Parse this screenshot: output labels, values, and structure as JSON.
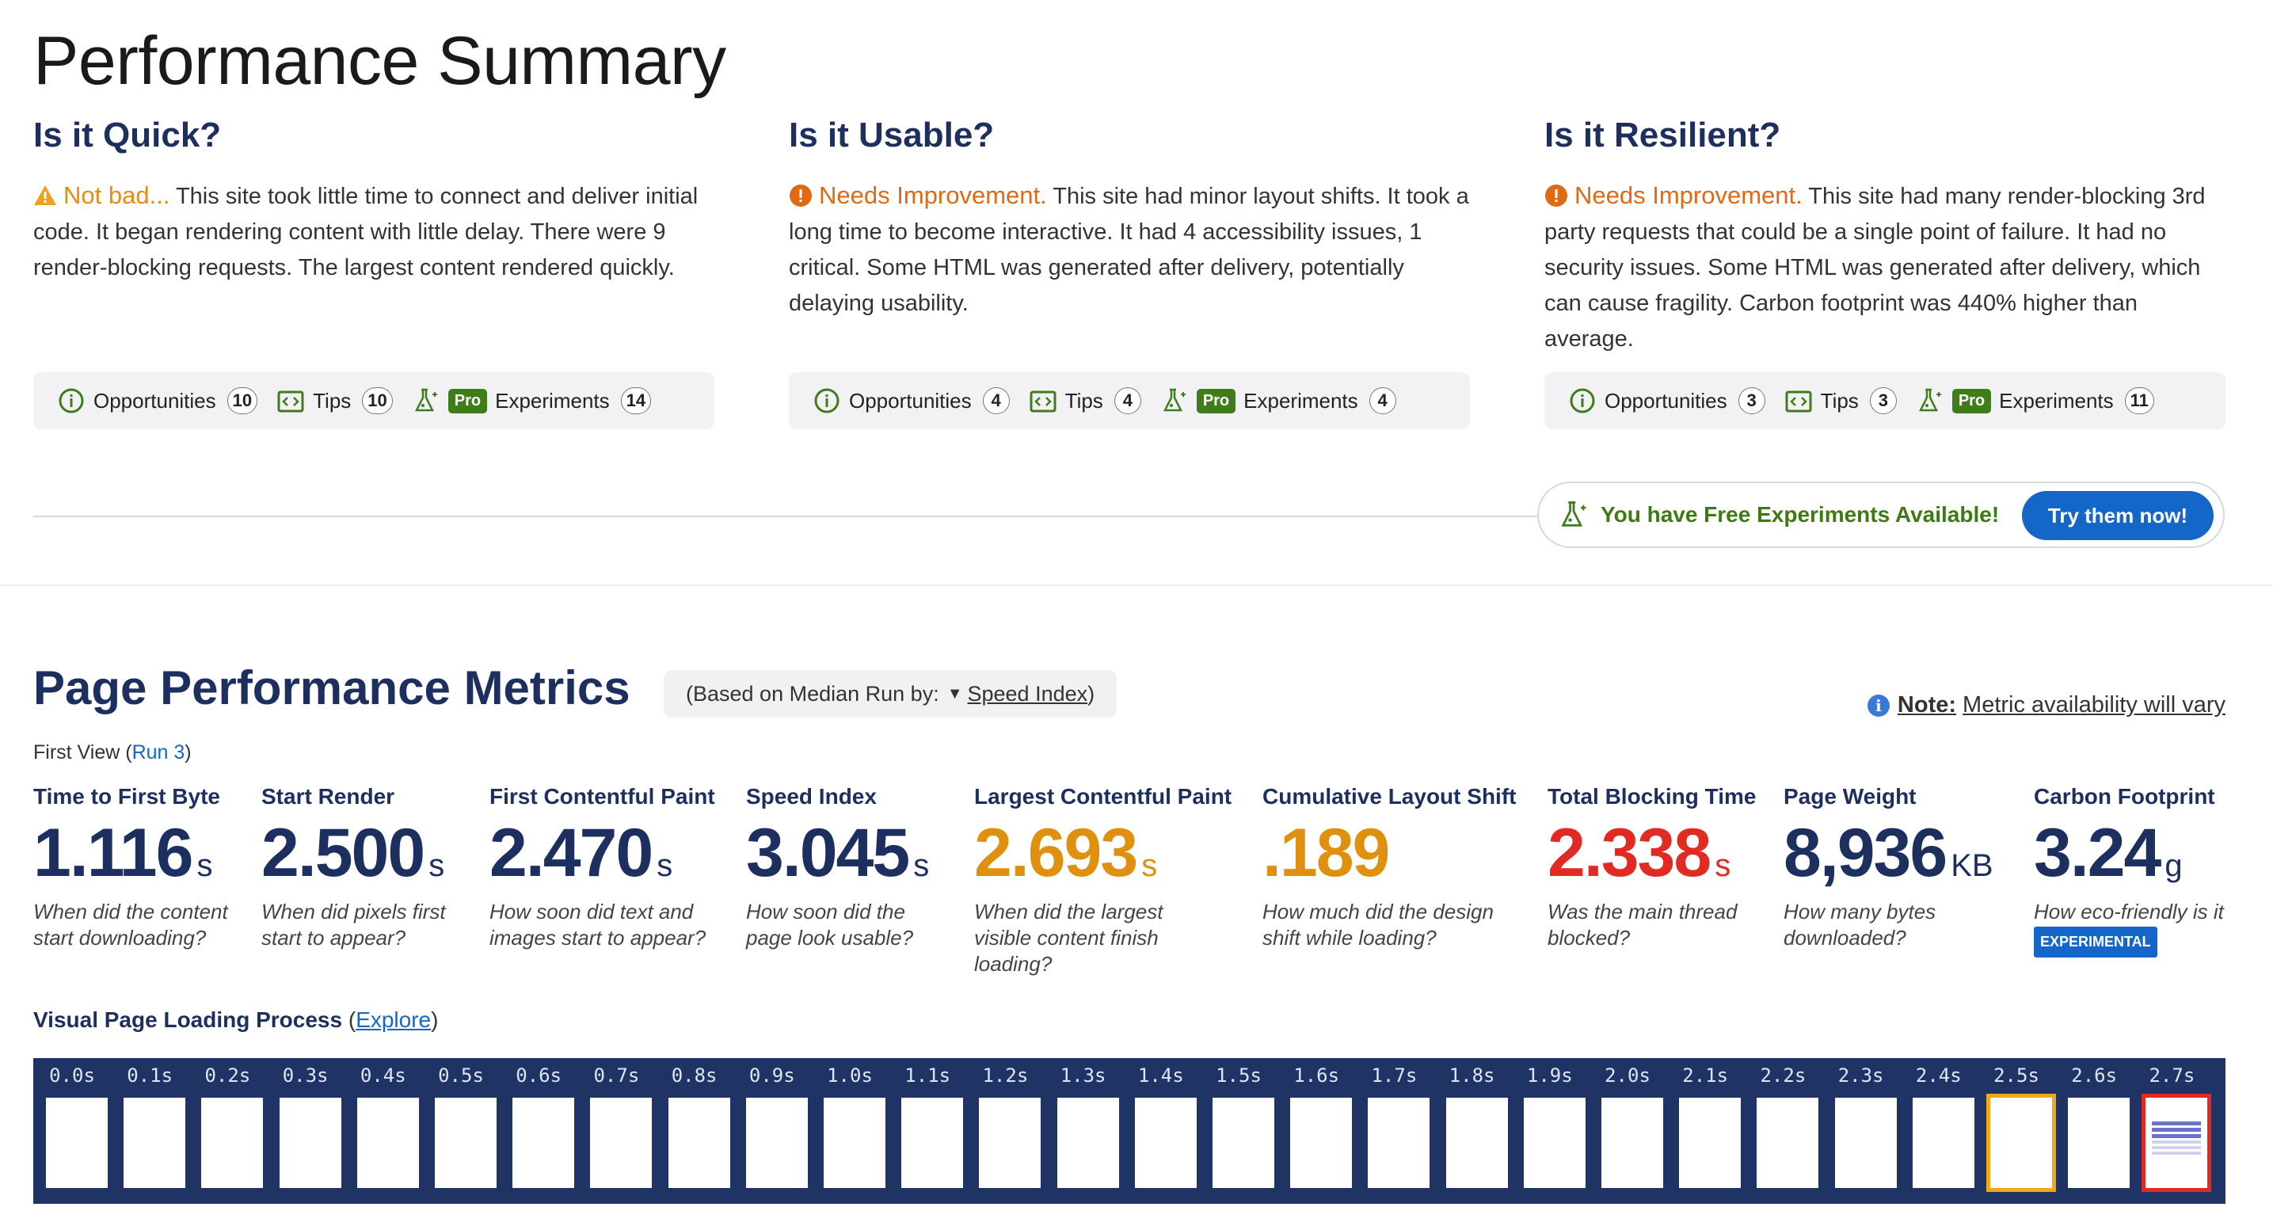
{
  "page_title": "Performance Summary",
  "summary_columns": [
    {
      "heading": "Is it Quick?",
      "verdict": "Not bad...",
      "verdict_icon": "warning-triangle-icon",
      "text": " This site took little time to connect and deliver initial code. It began rendering content with little delay. There were 9 render-blocking requests. The largest content rendered quickly.",
      "opportunities_label": "Opportunities",
      "opportunities_count": "10",
      "tips_label": "Tips",
      "tips_count": "10",
      "pro_label": "Pro",
      "experiments_label": "Experiments",
      "experiments_count": "14"
    },
    {
      "heading": "Is it Usable?",
      "verdict": "Needs Improvement.",
      "verdict_icon": "alert-circle-icon",
      "text": " This site had minor layout shifts. It took a long time to become interactive. It had 4 accessibility issues, 1 critical. Some HTML was generated after delivery, potentially delaying usability.",
      "opportunities_label": "Opportunities",
      "opportunities_count": "4",
      "tips_label": "Tips",
      "tips_count": "4",
      "pro_label": "Pro",
      "experiments_label": "Experiments",
      "experiments_count": "4"
    },
    {
      "heading": "Is it Resilient?",
      "verdict": "Needs Improvement.",
      "verdict_icon": "alert-circle-icon",
      "text": " This site had many render-blocking 3rd party requests that could be a single point of failure. It had no security issues. Some HTML was generated after delivery, which can cause fragility. Carbon footprint was 440% higher than average.",
      "opportunities_label": "Opportunities",
      "opportunities_count": "3",
      "tips_label": "Tips",
      "tips_count": "3",
      "pro_label": "Pro",
      "experiments_label": "Experiments",
      "experiments_count": "11"
    }
  ],
  "free_experiments": {
    "message": "You have Free Experiments Available!",
    "button": "Try them now!"
  },
  "metrics_section": {
    "title": "Page Performance Metrics",
    "median_prefix": "(Based on Median Run by:",
    "median_metric": "Speed Index",
    "median_suffix": ")",
    "note_label": "Note:",
    "note_text": "Metric availability will vary",
    "first_view": "First View (",
    "run_link": "Run 3",
    "first_view_close": ")"
  },
  "metrics": [
    {
      "label": "Time to First Byte",
      "value": "1.116",
      "unit": "s",
      "desc": "When did the content start downloading?",
      "status": "good"
    },
    {
      "label": "Start Render",
      "value": "2.500",
      "unit": "s",
      "desc": "When did pixels first start to appear?",
      "status": "good"
    },
    {
      "label": "First Contentful Paint",
      "value": "2.470",
      "unit": "s",
      "desc": "How soon did text and images start to appear?",
      "status": "good"
    },
    {
      "label": "Speed Index",
      "value": "3.045",
      "unit": "s",
      "desc": "How soon did the page look usable?",
      "status": "good"
    },
    {
      "label": "Largest Contentful Paint",
      "value": "2.693",
      "unit": "s",
      "desc": "When did the largest visible content finish loading?",
      "status": "warn"
    },
    {
      "label": "Cumulative Layout Shift",
      "value": ".189",
      "unit": "",
      "desc": "How much did the design shift while loading?",
      "status": "warn"
    },
    {
      "label": "Total Blocking Time",
      "value": "2.338",
      "unit": "s",
      "desc": "Was the main thread blocked?",
      "status": "bad"
    },
    {
      "label": "Page Weight",
      "value": "8,936",
      "unit": "KB",
      "desc": "How many bytes downloaded?",
      "status": "good"
    },
    {
      "label": "Carbon Footprint",
      "value": "3.24",
      "unit": "g",
      "desc": "How eco-friendly is it",
      "badge": "EXPERIMENTAL",
      "status": "good"
    }
  ],
  "visual_loading": {
    "title": "Visual Page Loading Process",
    "open": " (",
    "explore": "Explore",
    "close": ")",
    "frames": [
      "0.0s",
      "0.1s",
      "0.2s",
      "0.3s",
      "0.4s",
      "0.5s",
      "0.6s",
      "0.7s",
      "0.8s",
      "0.9s",
      "1.0s",
      "1.1s",
      "1.2s",
      "1.3s",
      "1.4s",
      "1.5s",
      "1.6s",
      "1.7s",
      "1.8s",
      "1.9s",
      "2.0s",
      "2.1s",
      "2.2s",
      "2.3s",
      "2.4s",
      "2.5s",
      "2.6s",
      "2.7s"
    ],
    "changed_frame": "2.5s",
    "final_frame": "2.7s"
  },
  "colors": {
    "navy": "#1c2f5f",
    "orange": "#e0900f",
    "red": "#e02a22",
    "green": "#3f7d1a",
    "blue": "#1466c8"
  }
}
